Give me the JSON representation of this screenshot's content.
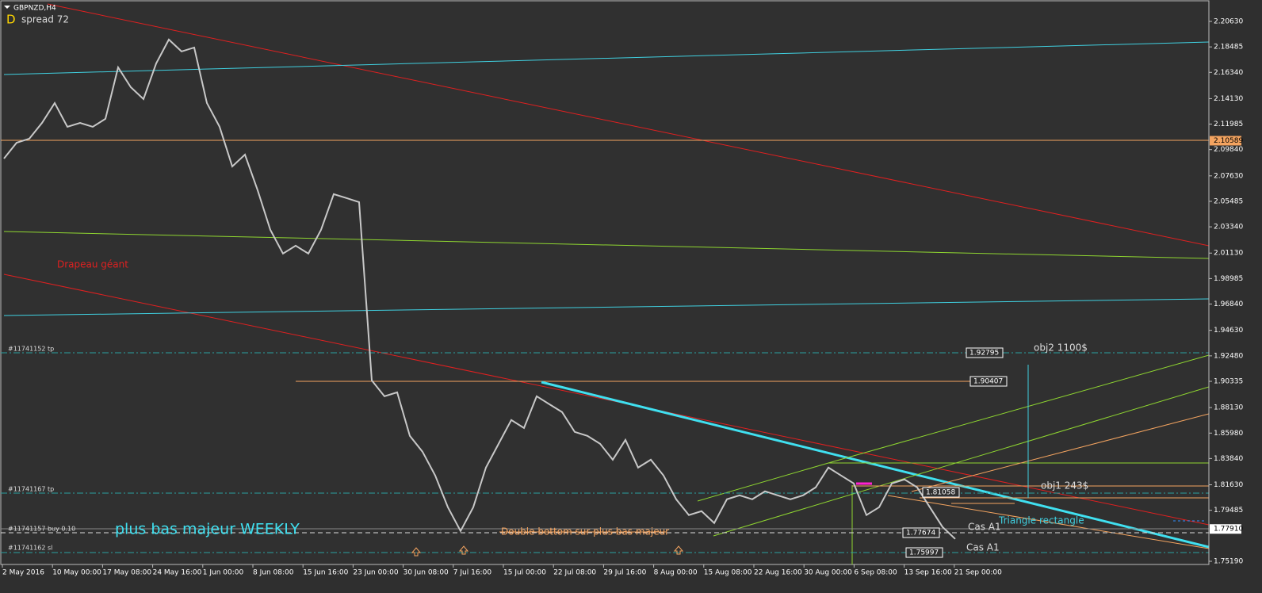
{
  "header": {
    "symbol": "GBPNZD,H4",
    "badge": "D",
    "spread": "spread 72"
  },
  "chart": {
    "price_axis": [
      {
        "value": 2.2063,
        "label": "2.20630"
      },
      {
        "value": 2.18485,
        "label": "2.18485"
      },
      {
        "value": 2.1634,
        "label": "2.16340"
      },
      {
        "value": 2.1413,
        "label": "2.14130"
      },
      {
        "value": 2.11985,
        "label": "2.11985"
      },
      {
        "value": 2.0984,
        "label": "2.09840"
      },
      {
        "value": 2.0763,
        "label": "2.07630"
      },
      {
        "value": 2.05485,
        "label": "2.05485"
      },
      {
        "value": 2.0334,
        "label": "2.03340"
      },
      {
        "value": 2.0113,
        "label": "2.01130"
      },
      {
        "value": 1.98985,
        "label": "1.98985"
      },
      {
        "value": 1.9684,
        "label": "1.96840"
      },
      {
        "value": 1.9463,
        "label": "1.94630"
      },
      {
        "value": 1.9248,
        "label": "1.92480"
      },
      {
        "value": 1.90335,
        "label": "1.90335"
      },
      {
        "value": 1.8813,
        "label": "1.88130"
      },
      {
        "value": 1.8598,
        "label": "1.85980"
      },
      {
        "value": 1.8384,
        "label": "1.83840"
      },
      {
        "value": 1.8163,
        "label": "1.81630"
      },
      {
        "value": 1.79485,
        "label": "1.79485"
      },
      {
        "value": 1.7519,
        "label": "1.75190"
      }
    ],
    "price_markers": [
      {
        "value": 2.10589,
        "label": "2.10589",
        "color": "#f4a460"
      },
      {
        "value": 1.7791,
        "label": "1.77910",
        "color": "#ffffff"
      }
    ],
    "time_axis": [
      "2 May 2016",
      "10 May 00:00",
      "17 May 08:00",
      "24 May 16:00",
      "1 Jun 00:00",
      "8 Jun 08:00",
      "15 Jun 16:00",
      "23 Jun 00:00",
      "30 Jun 08:00",
      "7 Jul 16:00",
      "15 Jul 00:00",
      "22 Jul 08:00",
      "29 Jul 16:00",
      "8 Aug 00:00",
      "15 Aug 08:00",
      "22 Aug 16:00",
      "30 Aug 00:00",
      "6 Sep 08:00",
      "13 Sep 16:00",
      "21 Sep 00:00"
    ],
    "price_series": [
      2.0909,
      2.1042,
      2.1076,
      2.1209,
      2.1376,
      2.1176,
      2.1209,
      2.1176,
      2.1243,
      2.1676,
      2.1509,
      2.1409,
      2.1709,
      2.191,
      2.181,
      2.1843,
      2.1376,
      2.1176,
      2.0842,
      2.0942,
      2.0642,
      2.0309,
      2.0109,
      2.0175,
      2.0109,
      2.0309,
      2.0609,
      2.0576,
      2.0542,
      1.9041,
      1.8908,
      1.8941,
      1.8575,
      1.8441,
      1.8241,
      1.7974,
      1.7774,
      1.7974,
      1.8308,
      1.8508,
      1.8708,
      1.8641,
      1.8908,
      1.8841,
      1.8775,
      1.8608,
      1.8575,
      1.8508,
      1.8374,
      1.8541,
      1.8308,
      1.8374,
      1.8241,
      1.8041,
      1.7908,
      1.7941,
      1.7841,
      1.8041,
      1.8074,
      1.8041,
      1.8108,
      1.8074,
      1.8041,
      1.8074,
      1.8141,
      1.8308,
      1.8241,
      1.8174,
      1.7908,
      1.7974,
      1.8174,
      1.8208,
      1.8141,
      1.7974,
      1.7808,
      1.7707
    ]
  },
  "annotations": {
    "flag": "Drapeau géant",
    "weekly": "plus bas majeur WEEKLY",
    "double_bottom": "Double bottom sur plus bas majeur",
    "obj2": "obj2  1100$",
    "obj1": "obj1  243$",
    "triangle": "Triangle rectangle",
    "case1": "Cas A1",
    "case2": "Cas A1"
  },
  "orders": [
    "#11741152 tp",
    "#11741167 tp",
    "#11741157 buy 0.10",
    "#11741162 sl"
  ],
  "price_boxes": [
    "1.92795",
    "1.90407",
    "1.81058",
    "1.77674",
    "1.75997"
  ]
}
